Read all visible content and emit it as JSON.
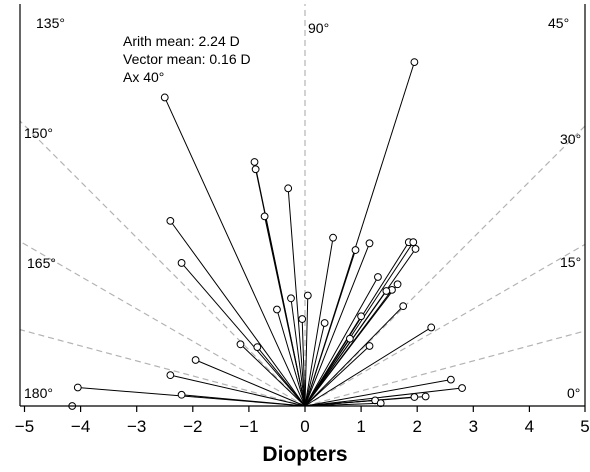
{
  "chart_data": {
    "type": "scatter",
    "subtype": "polar vector plot (half-plane)",
    "xlabel": "Diopters",
    "ylabel": "",
    "title": "",
    "xlim": [
      -5,
      5
    ],
    "x_ticks": [
      "−5",
      "−4",
      "−3",
      "−2",
      "−1",
      "0",
      "1",
      "2",
      "3",
      "4",
      "5"
    ],
    "grid": false,
    "reference_angles": [
      "0°",
      "15°",
      "30°",
      "45°",
      "90°",
      "135°",
      "150°",
      "165°",
      "180°"
    ],
    "annotations": [
      "Arith mean: 2.24 D",
      "Vector mean: 0.16 D",
      "Ax 40°"
    ],
    "points": [
      {
        "x": 1.95,
        "y": 6.13
      },
      {
        "x": -2.5,
        "y": 5.5
      },
      {
        "x": -0.9,
        "y": 4.35
      },
      {
        "x": -0.88,
        "y": 4.22
      },
      {
        "x": -0.3,
        "y": 3.88
      },
      {
        "x": -0.72,
        "y": 3.38
      },
      {
        "x": -2.4,
        "y": 3.3
      },
      {
        "x": 0.5,
        "y": 3.0
      },
      {
        "x": 1.85,
        "y": 2.92
      },
      {
        "x": 1.93,
        "y": 2.92
      },
      {
        "x": 1.15,
        "y": 2.9
      },
      {
        "x": 1.97,
        "y": 2.8
      },
      {
        "x": 0.9,
        "y": 2.78
      },
      {
        "x": -2.2,
        "y": 2.55
      },
      {
        "x": 1.3,
        "y": 2.3
      },
      {
        "x": 1.65,
        "y": 2.17
      },
      {
        "x": 1.55,
        "y": 2.07
      },
      {
        "x": 1.45,
        "y": 2.05
      },
      {
        "x": 0.05,
        "y": 1.97
      },
      {
        "x": -0.25,
        "y": 1.92
      },
      {
        "x": 1.75,
        "y": 1.78
      },
      {
        "x": -0.5,
        "y": 1.72
      },
      {
        "x": 1.0,
        "y": 1.6
      },
      {
        "x": -0.05,
        "y": 1.55
      },
      {
        "x": 0.35,
        "y": 1.48
      },
      {
        "x": 2.25,
        "y": 1.4
      },
      {
        "x": 0.8,
        "y": 1.2
      },
      {
        "x": -1.15,
        "y": 1.1
      },
      {
        "x": -0.85,
        "y": 1.05
      },
      {
        "x": 1.15,
        "y": 1.07
      },
      {
        "x": -1.95,
        "y": 0.82
      },
      {
        "x": -2.4,
        "y": 0.55
      },
      {
        "x": 2.6,
        "y": 0.47
      },
      {
        "x": -4.05,
        "y": 0.33
      },
      {
        "x": 2.8,
        "y": 0.32
      },
      {
        "x": -2.2,
        "y": 0.2
      },
      {
        "x": 2.15,
        "y": 0.17
      },
      {
        "x": 1.95,
        "y": 0.16
      },
      {
        "x": 1.25,
        "y": 0.1
      },
      {
        "x": 1.35,
        "y": 0.05
      },
      {
        "x": -4.15,
        "y": 0.0
      }
    ]
  }
}
